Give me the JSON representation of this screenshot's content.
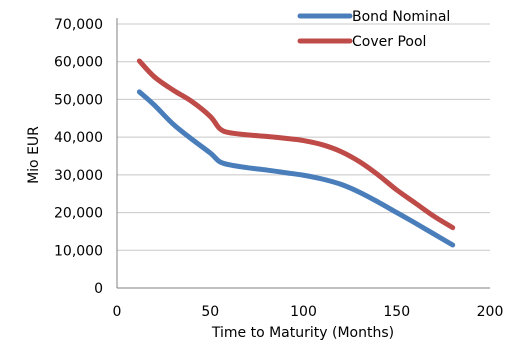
{
  "chart_data": {
    "type": "line",
    "xlabel": "Time to Maturity (Months)",
    "ylabel": "Mio EUR",
    "xlim": [
      0,
      200
    ],
    "ylim": [
      0,
      70000
    ],
    "xticks": [
      "0",
      "50",
      "100",
      "150",
      "200"
    ],
    "yticks": [
      "0",
      "10,000",
      "20,000",
      "30,000",
      "40,000",
      "50,000",
      "60,000",
      "70,000"
    ],
    "grid": "horizontal",
    "legend": "top-right",
    "series": [
      {
        "name": "Bond Nominal",
        "color": "#4a7ebb",
        "x": [
          12,
          20,
          30,
          40,
          50,
          55,
          60,
          70,
          80,
          90,
          100,
          110,
          120,
          130,
          140,
          150,
          160,
          170,
          180
        ],
        "y": [
          52000,
          48500,
          43500,
          39500,
          35800,
          33500,
          32700,
          31900,
          31300,
          30600,
          29900,
          28900,
          27500,
          25400,
          22800,
          20000,
          17200,
          14300,
          11400
        ]
      },
      {
        "name": "Cover Pool",
        "color": "#be4b48",
        "x": [
          12,
          20,
          30,
          40,
          50,
          55,
          60,
          70,
          80,
          90,
          100,
          110,
          120,
          130,
          140,
          150,
          160,
          170,
          180
        ],
        "y": [
          60200,
          56000,
          52500,
          49500,
          45500,
          42300,
          41200,
          40600,
          40200,
          39700,
          39100,
          38000,
          36200,
          33500,
          30000,
          26000,
          22500,
          19000,
          16000
        ]
      }
    ]
  }
}
